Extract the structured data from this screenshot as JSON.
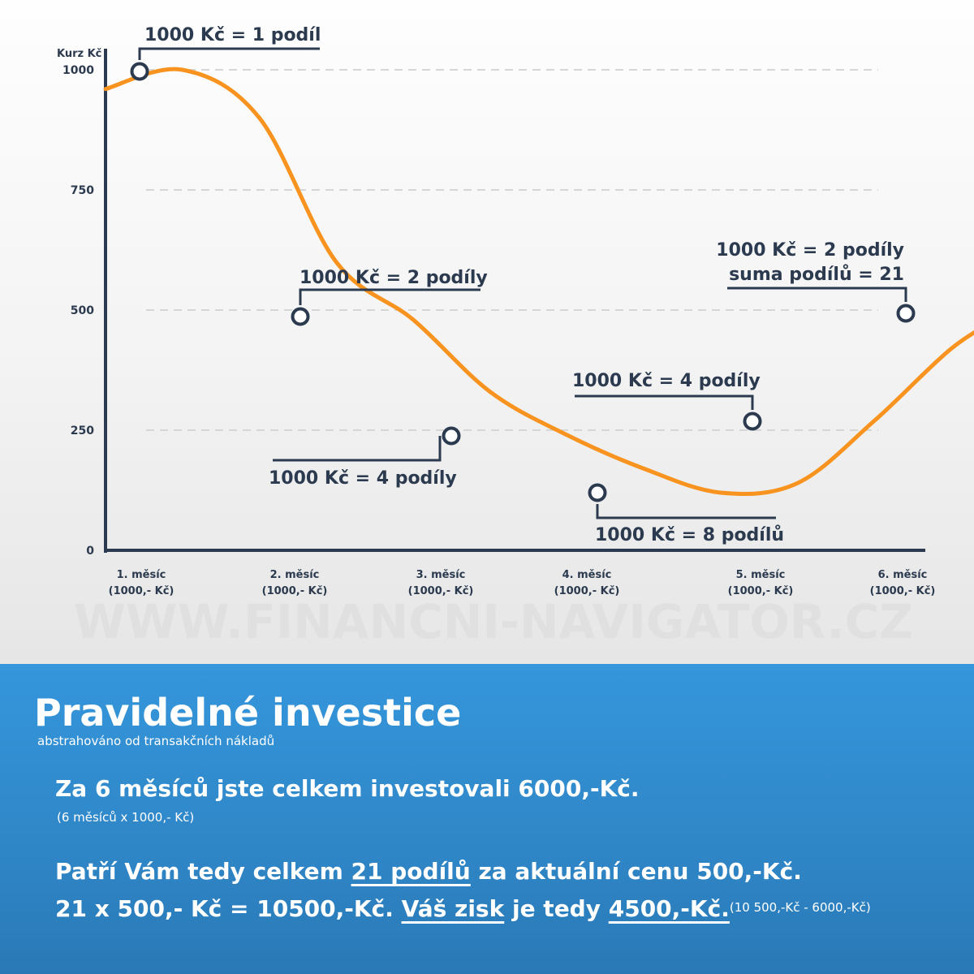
{
  "chart_data": {
    "type": "line",
    "ylabel": "Kurz Kč",
    "ylim": [
      0,
      1000
    ],
    "yticks": [
      "0",
      "250",
      "500",
      "750",
      "1000"
    ],
    "categories": [
      {
        "line1": "1. měsíc",
        "line2": "(1000,- Kč)"
      },
      {
        "line1": "2. měsíc",
        "line2": "(1000,- Kč)"
      },
      {
        "line1": "3. měsíc",
        "line2": "(1000,- Kč)"
      },
      {
        "line1": "4. měsíc",
        "line2": "(1000,- Kč)"
      },
      {
        "line1": "5. měsíc",
        "line2": "(1000,- Kč)"
      },
      {
        "line1": "6. měsíc",
        "line2": "(1000,- Kč)"
      }
    ],
    "x": [
      0,
      0.5,
      1,
      1.5,
      2,
      2.5,
      3,
      3.5,
      4,
      4.5,
      5,
      5.5,
      5.85
    ],
    "y": [
      960,
      1000,
      900,
      600,
      480,
      330,
      240,
      170,
      120,
      140,
      270,
      420,
      490
    ],
    "points": [
      {
        "x": 0.2,
        "y": 995,
        "label": [
          "1000 Kč = 1 podíl"
        ]
      },
      {
        "x": 1.0,
        "y": 485,
        "label": [
          "1000 Kč = 2 podíly"
        ]
      },
      {
        "x": 2.0,
        "y": 240,
        "label": [
          "1000 Kč = 4 podíly"
        ]
      },
      {
        "x": 3.0,
        "y": 120,
        "label": [
          "1000 Kč = 8 podílů"
        ]
      },
      {
        "x": 4.0,
        "y": 270,
        "label": [
          "1000 Kč = 4 podíly"
        ]
      },
      {
        "x": 5.0,
        "y": 490,
        "label": [
          "1000 Kč = 2 podíly",
          "suma podílů = 21"
        ]
      }
    ],
    "grid": true,
    "colors": {
      "line": "#f7931e",
      "axis": "#2b3a4e",
      "grid": "#d6d6d6"
    }
  },
  "watermark": "WWW.FINANCNI-NAVIGATOR.CZ",
  "info": {
    "title": "Pravidelné investice",
    "subtitle": "abstrahováno od transakčních nákladů",
    "line1": "Za 6 měsíců jste celkem investovali 6000,-Kč.",
    "line1_note": "(6 měsíců x 1000,- Kč)",
    "line2_a": "Patří Vám tedy celkem ",
    "line2_u": "21 podílů",
    "line2_b": " za aktuální cenu 500,-Kč.",
    "line3_a": "21 x 500,- Kč = 10500,-Kč. ",
    "line3_u1": "Váš zisk",
    "line3_b": " je tedy ",
    "line3_u2": "4500,-Kč.",
    "line3_note": "(10 500,-Kč - 6000,-Kč)"
  }
}
